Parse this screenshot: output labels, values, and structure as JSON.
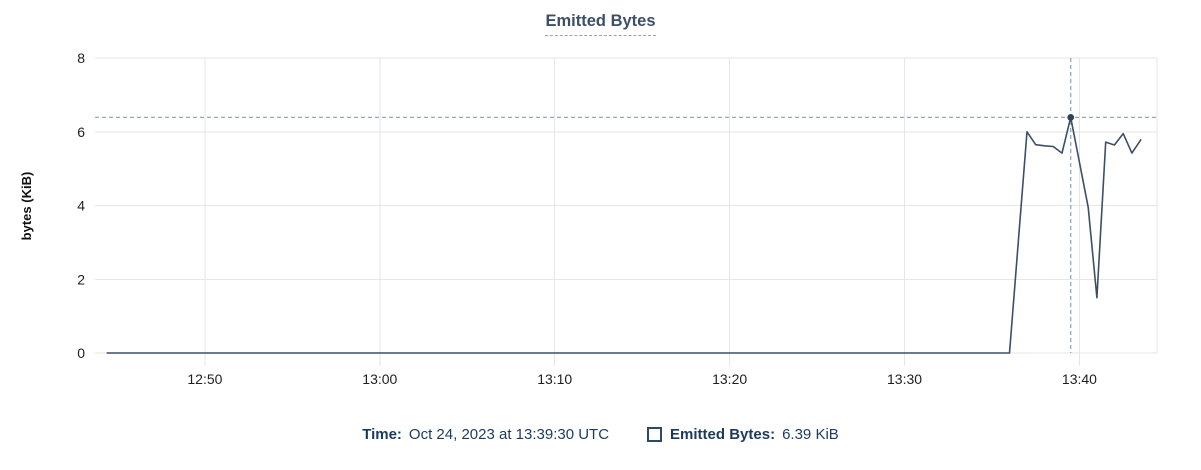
{
  "panel": {
    "title": "Emitted Bytes"
  },
  "footer": {
    "time_label": "Time:",
    "time_value": "Oct 24, 2023 at 13:39:30 UTC",
    "series_label": "Emitted Bytes:",
    "series_value": "6.39 KiB"
  },
  "colors": {
    "line": "#3d4f66",
    "marker": "#2f4459",
    "grid": "#e6e6e6",
    "crosshair": "#94aaba",
    "axis_text": "#1f1f1f",
    "title_text": "#3d4f66",
    "footer_text": "#1c3a5e"
  },
  "chart_data": {
    "type": "line",
    "title": "Emitted Bytes",
    "xlabel": "",
    "ylabel": "bytes (KiB)",
    "ylim": [
      0,
      8
    ],
    "yticks": [
      0,
      2,
      4,
      6,
      8
    ],
    "xticks": [
      "12:50",
      "13:00",
      "13:10",
      "13:20",
      "13:30",
      "13:40"
    ],
    "x_domain": [
      "12:43:43",
      "13:44:26"
    ],
    "grid": true,
    "legend_position": "bottom",
    "series": [
      {
        "name": "Emitted Bytes",
        "unit": "KiB",
        "points": [
          [
            "12:44:25",
            0
          ],
          [
            "13:36:00",
            0
          ],
          [
            "13:37:00",
            6.0
          ],
          [
            "13:37:30",
            5.65
          ],
          [
            "13:38:00",
            5.62
          ],
          [
            "13:38:30",
            5.6
          ],
          [
            "13:39:00",
            5.42
          ],
          [
            "13:39:30",
            6.39
          ],
          [
            "13:40:30",
            3.95
          ],
          [
            "13:41:00",
            1.5
          ],
          [
            "13:41:30",
            5.72
          ],
          [
            "13:42:00",
            5.64
          ],
          [
            "13:42:30",
            5.95
          ],
          [
            "13:43:00",
            5.42
          ],
          [
            "13:43:30",
            5.78
          ]
        ]
      }
    ],
    "crosshair": {
      "time": "13:39:30",
      "value": 6.39
    }
  }
}
